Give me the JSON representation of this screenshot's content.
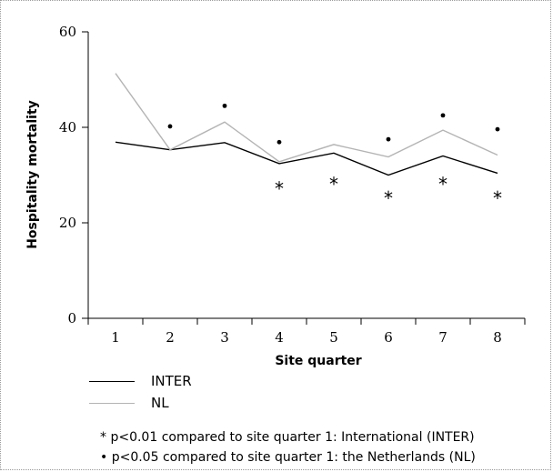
{
  "chart_data": {
    "type": "line",
    "title": "",
    "xlabel": "Site quarter",
    "ylabel": "Hospitality mortality",
    "categories": [
      "1",
      "2",
      "3",
      "4",
      "5",
      "6",
      "7",
      "8"
    ],
    "ylim": [
      0,
      60
    ],
    "yticks": [
      0,
      20,
      40,
      60
    ],
    "yticklabels": [
      "0",
      "20",
      "40",
      "60"
    ],
    "series": [
      {
        "name": "INTER",
        "color": "#000000",
        "values": [
          36.9,
          35.3,
          36.8,
          32.4,
          34.6,
          30.0,
          34.0,
          30.4
        ]
      },
      {
        "name": "NL",
        "color": "#b4b4b4",
        "values": [
          51.3,
          35.3,
          41.1,
          32.8,
          36.4,
          33.8,
          39.4,
          34.2
        ]
      }
    ],
    "markers": {
      "star": {
        "symbol": "*",
        "categories": [
          "4",
          "5",
          "6",
          "7",
          "8"
        ],
        "values": [
          27.5,
          28.5,
          25.5,
          28.5,
          25.5
        ]
      },
      "dot": {
        "symbol": "•",
        "categories": [
          "2",
          "3",
          "4",
          "6",
          "7",
          "8"
        ],
        "values": [
          40.2,
          44.5,
          36.9,
          37.5,
          42.5,
          39.6
        ]
      }
    },
    "legend_position": "bottom-left",
    "grid": false
  },
  "notes": [
    "* p<0.01 compared to site quarter 1: International (INTER)",
    "• p<0.05 compared to site quarter 1: the Netherlands (NL)"
  ]
}
